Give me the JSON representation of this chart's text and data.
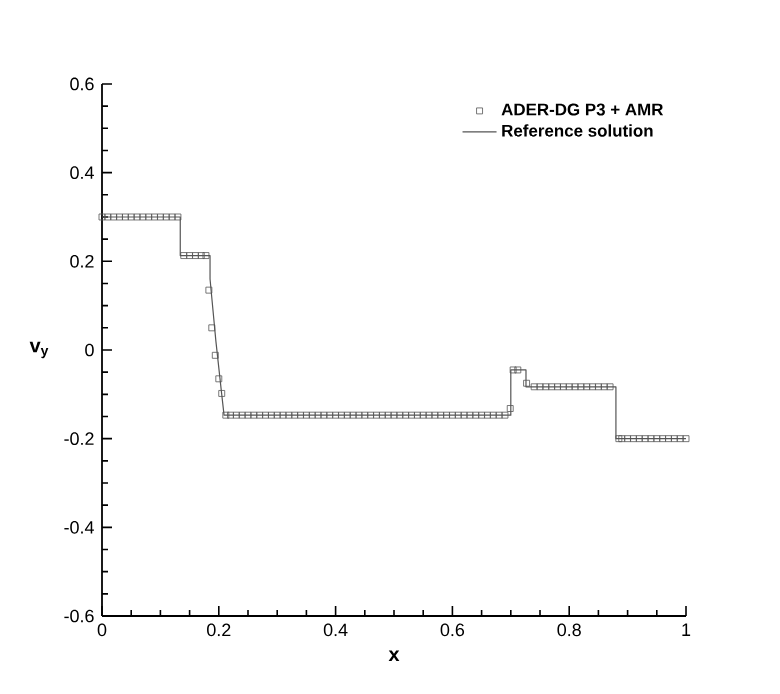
{
  "chart_data": {
    "type": "line",
    "xlabel": "x",
    "ylabel": "v$_{y}$",
    "xlim": [
      0,
      1
    ],
    "ylim": [
      -0.6,
      0.6
    ],
    "xticks": [
      0,
      0.2,
      0.4,
      0.6,
      0.8,
      1
    ],
    "yticks": [
      -0.6,
      -0.4,
      -0.2,
      0,
      0.2,
      0.4,
      0.6
    ],
    "legend": "top right",
    "grid": false,
    "series": [
      {
        "name": "ADER-DG P3 + AMR",
        "type": "scatter",
        "marker": "square",
        "color": "#555555",
        "x": [
          0.0,
          0.01,
          0.02,
          0.03,
          0.04,
          0.05,
          0.06,
          0.07,
          0.08,
          0.09,
          0.1,
          0.11,
          0.12,
          0.13,
          0.14,
          0.15,
          0.16,
          0.17,
          0.178,
          0.183,
          0.188,
          0.194,
          0.2,
          0.205,
          0.212,
          0.22,
          0.23,
          0.24,
          0.25,
          0.26,
          0.27,
          0.28,
          0.29,
          0.3,
          0.31,
          0.32,
          0.33,
          0.34,
          0.35,
          0.36,
          0.37,
          0.38,
          0.39,
          0.4,
          0.41,
          0.42,
          0.43,
          0.44,
          0.45,
          0.46,
          0.47,
          0.48,
          0.49,
          0.5,
          0.51,
          0.52,
          0.53,
          0.54,
          0.55,
          0.56,
          0.57,
          0.58,
          0.59,
          0.6,
          0.61,
          0.62,
          0.63,
          0.64,
          0.65,
          0.66,
          0.67,
          0.68,
          0.69,
          0.699,
          0.704,
          0.712,
          0.727,
          0.74,
          0.75,
          0.76,
          0.77,
          0.78,
          0.79,
          0.8,
          0.81,
          0.82,
          0.83,
          0.84,
          0.85,
          0.86,
          0.87,
          0.885,
          0.89,
          0.9,
          0.91,
          0.92,
          0.93,
          0.94,
          0.95,
          0.96,
          0.97,
          0.98,
          0.99,
          1.0
        ],
        "values": [
          0.3,
          0.3,
          0.3,
          0.3,
          0.3,
          0.3,
          0.3,
          0.3,
          0.3,
          0.3,
          0.3,
          0.3,
          0.3,
          0.3,
          0.213,
          0.213,
          0.213,
          0.213,
          0.213,
          0.135,
          0.05,
          -0.012,
          -0.065,
          -0.098,
          -0.147,
          -0.147,
          -0.147,
          -0.147,
          -0.147,
          -0.147,
          -0.147,
          -0.147,
          -0.147,
          -0.147,
          -0.147,
          -0.147,
          -0.147,
          -0.147,
          -0.147,
          -0.147,
          -0.147,
          -0.147,
          -0.147,
          -0.147,
          -0.147,
          -0.147,
          -0.147,
          -0.147,
          -0.147,
          -0.147,
          -0.147,
          -0.147,
          -0.147,
          -0.147,
          -0.147,
          -0.147,
          -0.147,
          -0.147,
          -0.147,
          -0.147,
          -0.147,
          -0.147,
          -0.147,
          -0.147,
          -0.147,
          -0.147,
          -0.147,
          -0.147,
          -0.147,
          -0.147,
          -0.147,
          -0.147,
          -0.147,
          -0.132,
          -0.045,
          -0.045,
          -0.075,
          -0.083,
          -0.083,
          -0.083,
          -0.083,
          -0.083,
          -0.083,
          -0.083,
          -0.083,
          -0.083,
          -0.083,
          -0.083,
          -0.083,
          -0.083,
          -0.083,
          -0.2,
          -0.2,
          -0.2,
          -0.2,
          -0.2,
          -0.2,
          -0.2,
          -0.2,
          -0.2,
          -0.2,
          -0.2,
          -0.2,
          -0.2
        ]
      },
      {
        "name": "Reference solution",
        "marker": "none",
        "color": "#555555",
        "x": [
          0,
          0.134,
          0.134,
          0.185,
          0.185,
          0.195,
          0.205,
          0.209,
          0.7,
          0.7,
          0.726,
          0.726,
          0.88,
          0.88,
          1
        ],
        "values": [
          0.3,
          0.3,
          0.213,
          0.213,
          0.16,
          0.02,
          -0.1,
          -0.147,
          -0.147,
          -0.045,
          -0.045,
          -0.083,
          -0.083,
          -0.2,
          -0.2
        ]
      }
    ]
  }
}
